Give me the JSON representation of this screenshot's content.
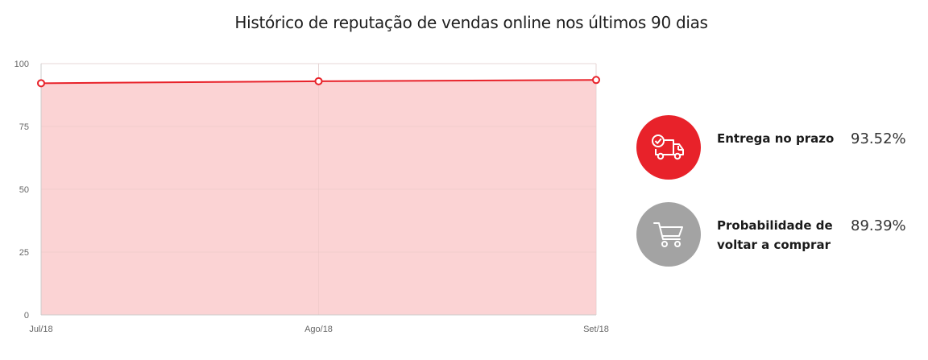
{
  "title": "Histórico de reputação de vendas online nos últimos 90 dias",
  "chart_data": {
    "type": "area",
    "categories": [
      "Jul/18",
      "Ago/18",
      "Set/18"
    ],
    "series": [
      {
        "values": [
          92.2,
          93.0,
          93.5
        ],
        "color": "#e8222a"
      }
    ],
    "ylim": [
      0,
      100
    ],
    "yticks": [
      0,
      25,
      50,
      75,
      100
    ],
    "fill_color": "#fbd3d4",
    "grid": true
  },
  "stats": [
    {
      "label": "Entrega no prazo",
      "value": "93.52%",
      "icon": "delivery-truck-icon",
      "color": "#e8222a"
    },
    {
      "label": "Probabilidade de voltar a comprar",
      "label_line1": "Probabilidade de",
      "label_line2": "voltar a comprar",
      "value": "89.39%",
      "icon": "shopping-cart-icon",
      "color": "#a3a3a3"
    }
  ]
}
